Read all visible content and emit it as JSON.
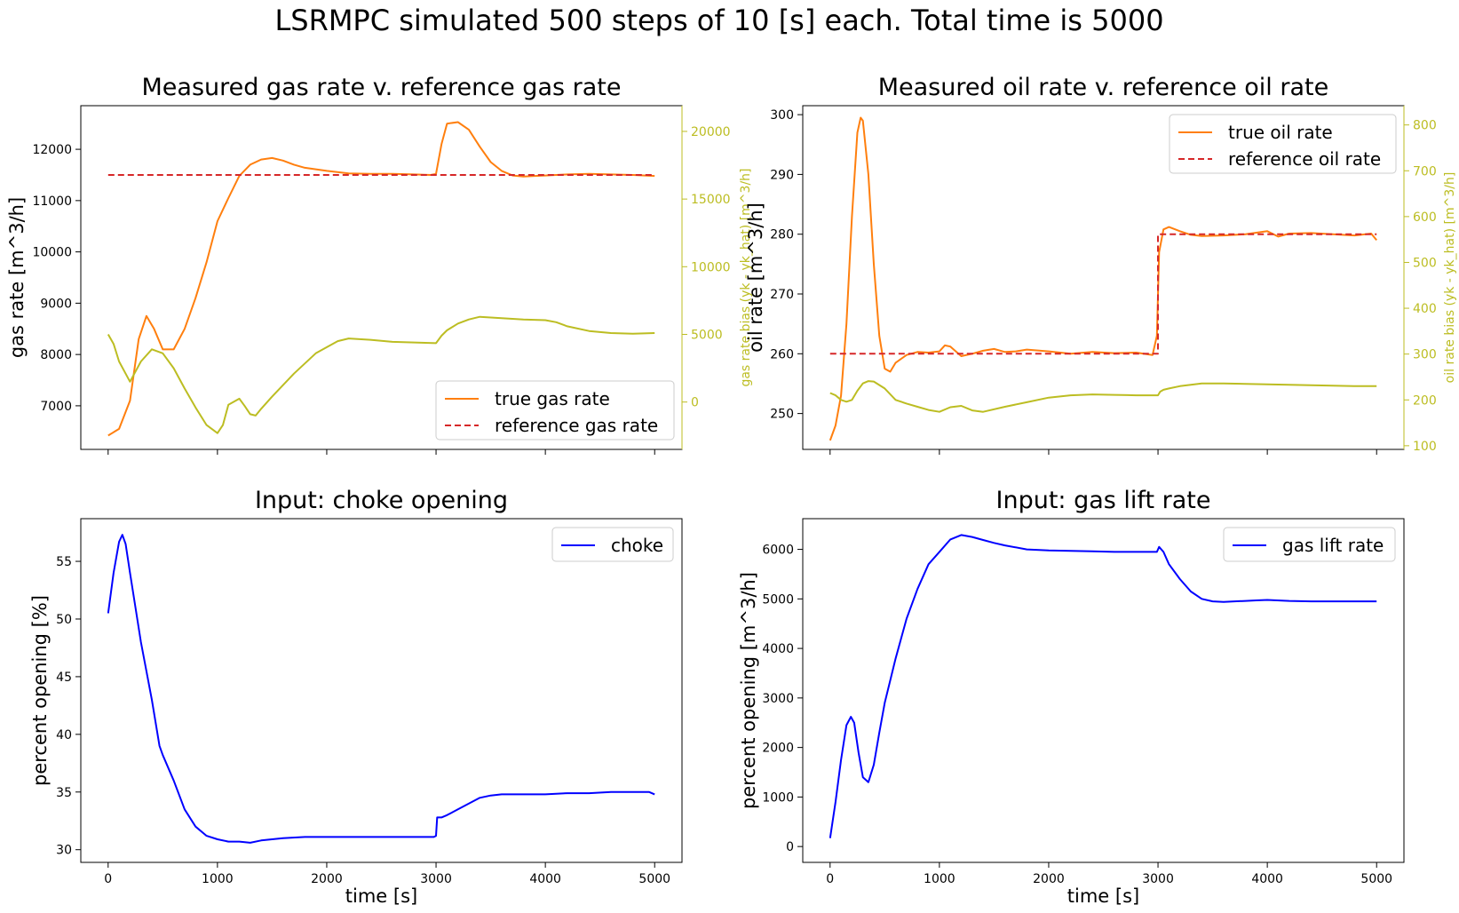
{
  "figure": {
    "suptitle": "LSRMPC simulated 500 steps of 10 [s] each. Total time is 5000"
  },
  "colors": {
    "orange": "#ff7f0e",
    "red": "#d62728",
    "olive": "#bcbd22",
    "blue": "#0000ff",
    "axis": "#000000"
  },
  "chart_data": [
    {
      "id": "gas",
      "type": "line",
      "title": "Measured gas rate v. reference gas rate",
      "xlabel": "",
      "ylabel": "gas rate [m^3/h]",
      "y2label": "gas rate bias (yk - yk_hat) [m^3/h]",
      "xlim": [
        -250,
        5250
      ],
      "ylim": [
        6150,
        12850
      ],
      "y2lim": [
        -3500,
        21900
      ],
      "xticks": [
        0,
        1000,
        2000,
        3000,
        4000,
        5000
      ],
      "yticks": [
        7000,
        8000,
        9000,
        10000,
        11000,
        12000
      ],
      "y2ticks": [
        0,
        5000,
        10000,
        15000,
        20000
      ],
      "show_xticklabels": false,
      "grid": false,
      "legend_position": "lower right",
      "series": [
        {
          "name": "true gas rate",
          "axis": "left",
          "color": "orange",
          "style": "solid",
          "x": [
            0,
            100,
            200,
            280,
            350,
            420,
            500,
            600,
            700,
            800,
            900,
            1000,
            1100,
            1200,
            1300,
            1400,
            1500,
            1600,
            1700,
            1800,
            2000,
            2200,
            2400,
            2600,
            2800,
            2950,
            3000,
            3050,
            3100,
            3200,
            3300,
            3400,
            3500,
            3600,
            3700,
            3800,
            3900,
            4000,
            4200,
            4400,
            4600,
            4800,
            5000
          ],
          "y": [
            6420,
            6550,
            7100,
            8300,
            8750,
            8500,
            8100,
            8100,
            8500,
            9100,
            9800,
            10600,
            11050,
            11480,
            11700,
            11800,
            11830,
            11780,
            11700,
            11640,
            11580,
            11530,
            11520,
            11520,
            11510,
            11500,
            11520,
            12100,
            12500,
            12530,
            12380,
            12050,
            11750,
            11580,
            11490,
            11470,
            11480,
            11490,
            11510,
            11520,
            11510,
            11500,
            11480
          ]
        },
        {
          "name": "reference gas rate",
          "axis": "left",
          "color": "red",
          "style": "dashed",
          "x": [
            0,
            5000
          ],
          "y": [
            11500,
            11500
          ]
        },
        {
          "name": "",
          "axis": "right",
          "color": "olive",
          "style": "solid",
          "x": [
            0,
            50,
            100,
            200,
            300,
            400,
            500,
            600,
            700,
            800,
            900,
            1000,
            1050,
            1100,
            1200,
            1250,
            1300,
            1350,
            1400,
            1500,
            1700,
            1900,
            2100,
            2200,
            2400,
            2600,
            2800,
            3000,
            3050,
            3100,
            3200,
            3300,
            3400,
            3600,
            3800,
            4000,
            4100,
            4200,
            4400,
            4600,
            4800,
            5000
          ],
          "y": [
            5000,
            4300,
            3000,
            1500,
            3000,
            3900,
            3600,
            2500,
            1000,
            -400,
            -1700,
            -2300,
            -1700,
            -200,
            250,
            -300,
            -900,
            -1000,
            -500,
            400,
            2100,
            3600,
            4500,
            4700,
            4600,
            4450,
            4400,
            4350,
            4900,
            5300,
            5800,
            6100,
            6300,
            6200,
            6100,
            6050,
            5900,
            5600,
            5250,
            5100,
            5050,
            5100
          ]
        }
      ]
    },
    {
      "id": "oil",
      "type": "line",
      "title": "Measured oil rate v. reference oil rate",
      "xlabel": "",
      "ylabel": "oil rate [m^3/h]",
      "y2label": "oil rate bias (yk - yk_hat) [m^3/h]",
      "xlim": [
        -250,
        5250
      ],
      "ylim": [
        244,
        301.5
      ],
      "y2lim": [
        92,
        842
      ],
      "xticks": [
        0,
        1000,
        2000,
        3000,
        4000,
        5000
      ],
      "yticks": [
        250,
        260,
        270,
        280,
        290,
        300
      ],
      "y2ticks": [
        100,
        200,
        300,
        400,
        500,
        600,
        700,
        800
      ],
      "show_xticklabels": false,
      "grid": false,
      "legend_position": "upper right",
      "series": [
        {
          "name": "true oil rate",
          "axis": "left",
          "color": "orange",
          "style": "solid",
          "x": [
            0,
            50,
            100,
            150,
            200,
            250,
            280,
            300,
            350,
            400,
            450,
            500,
            550,
            600,
            700,
            800,
            900,
            1000,
            1050,
            1100,
            1200,
            1300,
            1400,
            1500,
            1600,
            1700,
            1800,
            2000,
            2200,
            2400,
            2600,
            2800,
            2950,
            2990,
            3010,
            3050,
            3100,
            3200,
            3300,
            3400,
            3600,
            3800,
            4000,
            4100,
            4200,
            4400,
            4600,
            4800,
            4950,
            5000
          ],
          "y": [
            245.5,
            248,
            253,
            265,
            283,
            297,
            299.5,
            299,
            290,
            275,
            263,
            257.5,
            257,
            258.5,
            259.8,
            260.3,
            260.2,
            260.4,
            261.4,
            261.2,
            259.6,
            260,
            260.5,
            260.8,
            260.3,
            260.4,
            260.7,
            260.4,
            260,
            260.3,
            260.1,
            260.2,
            259.8,
            263,
            277,
            280.8,
            281.2,
            280.5,
            279.9,
            279.7,
            279.8,
            280,
            280.5,
            279.6,
            280.1,
            280.2,
            280,
            279.8,
            280.1,
            279
          ]
        },
        {
          "name": "reference oil rate",
          "axis": "left",
          "color": "red",
          "style": "dashed",
          "x": [
            0,
            3000,
            3000,
            5000
          ],
          "y": [
            260,
            260,
            280,
            280
          ]
        },
        {
          "name": "",
          "axis": "right",
          "color": "olive",
          "style": "solid",
          "x": [
            0,
            50,
            100,
            150,
            200,
            250,
            300,
            350,
            400,
            500,
            600,
            700,
            800,
            900,
            1000,
            1100,
            1200,
            1300,
            1400,
            1600,
            1800,
            2000,
            2200,
            2400,
            2600,
            2800,
            3000,
            3020,
            3050,
            3100,
            3200,
            3300,
            3400,
            3600,
            3800,
            4000,
            4200,
            4400,
            4600,
            4800,
            5000
          ],
          "y": [
            215,
            210,
            200,
            196,
            200,
            220,
            236,
            241,
            240,
            225,
            200,
            192,
            185,
            178,
            174,
            184,
            187,
            177,
            174,
            185,
            195,
            205,
            210,
            212,
            211,
            210,
            210,
            218,
            222,
            225,
            230,
            233,
            236,
            236,
            235,
            234,
            233,
            232,
            231,
            230,
            230
          ]
        }
      ]
    },
    {
      "id": "choke",
      "type": "line",
      "title": "Input: choke opening",
      "xlabel": "time [s]",
      "ylabel": "percent opening [%]",
      "xlim": [
        -250,
        5250
      ],
      "ylim": [
        28.9,
        58.7
      ],
      "xticks": [
        0,
        1000,
        2000,
        3000,
        4000,
        5000
      ],
      "yticks": [
        30,
        35,
        40,
        45,
        50,
        55
      ],
      "show_xticklabels": true,
      "grid": false,
      "legend_position": "upper right",
      "series": [
        {
          "name": "choke",
          "axis": "left",
          "color": "blue",
          "style": "solid",
          "x": [
            0,
            50,
            100,
            130,
            160,
            200,
            300,
            400,
            470,
            500,
            600,
            700,
            800,
            900,
            1000,
            1100,
            1200,
            1300,
            1400,
            1500,
            1600,
            1800,
            2000,
            2200,
            2400,
            2600,
            2800,
            2980,
            3000,
            3010,
            3050,
            3100,
            3200,
            3300,
            3400,
            3500,
            3600,
            3800,
            4000,
            4200,
            4400,
            4600,
            4800,
            4950,
            5000
          ],
          "y": [
            50.5,
            54,
            56.7,
            57.3,
            56.5,
            54,
            48,
            43,
            39,
            38.2,
            36,
            33.5,
            32,
            31.2,
            30.9,
            30.7,
            30.7,
            30.6,
            30.8,
            30.9,
            31,
            31.1,
            31.1,
            31.1,
            31.1,
            31.1,
            31.1,
            31.1,
            31.2,
            32.8,
            32.8,
            33,
            33.5,
            34,
            34.5,
            34.7,
            34.8,
            34.8,
            34.8,
            34.9,
            34.9,
            35,
            35,
            35,
            34.8
          ]
        }
      ]
    },
    {
      "id": "gaslift",
      "type": "line",
      "title": "Input: gas lift rate",
      "xlabel": "time [s]",
      "ylabel": "percent opening [m^3/h]",
      "xlim": [
        -250,
        5250
      ],
      "ylim": [
        -320,
        6620
      ],
      "xticks": [
        0,
        1000,
        2000,
        3000,
        4000,
        5000
      ],
      "yticks": [
        0,
        1000,
        2000,
        3000,
        4000,
        5000,
        6000
      ],
      "show_xticklabels": true,
      "grid": false,
      "legend_position": "upper right",
      "series": [
        {
          "name": "gas lift rate",
          "axis": "left",
          "color": "blue",
          "style": "solid",
          "x": [
            0,
            50,
            100,
            150,
            190,
            220,
            260,
            300,
            350,
            400,
            450,
            500,
            600,
            700,
            800,
            900,
            1000,
            1100,
            1200,
            1300,
            1400,
            1500,
            1600,
            1800,
            2000,
            2200,
            2400,
            2600,
            2800,
            2990,
            3010,
            3050,
            3100,
            3200,
            3300,
            3400,
            3500,
            3600,
            3700,
            3800,
            3900,
            4000,
            4200,
            4400,
            4600,
            4800,
            5000
          ],
          "y": [
            170,
            900,
            1750,
            2450,
            2620,
            2500,
            1900,
            1400,
            1300,
            1650,
            2300,
            2900,
            3800,
            4600,
            5200,
            5700,
            5950,
            6200,
            6290,
            6250,
            6190,
            6130,
            6080,
            6000,
            5980,
            5970,
            5960,
            5950,
            5950,
            5950,
            6050,
            5950,
            5700,
            5400,
            5150,
            5000,
            4950,
            4940,
            4950,
            4960,
            4970,
            4980,
            4960,
            4950,
            4950,
            4950,
            4950
          ]
        }
      ]
    }
  ]
}
